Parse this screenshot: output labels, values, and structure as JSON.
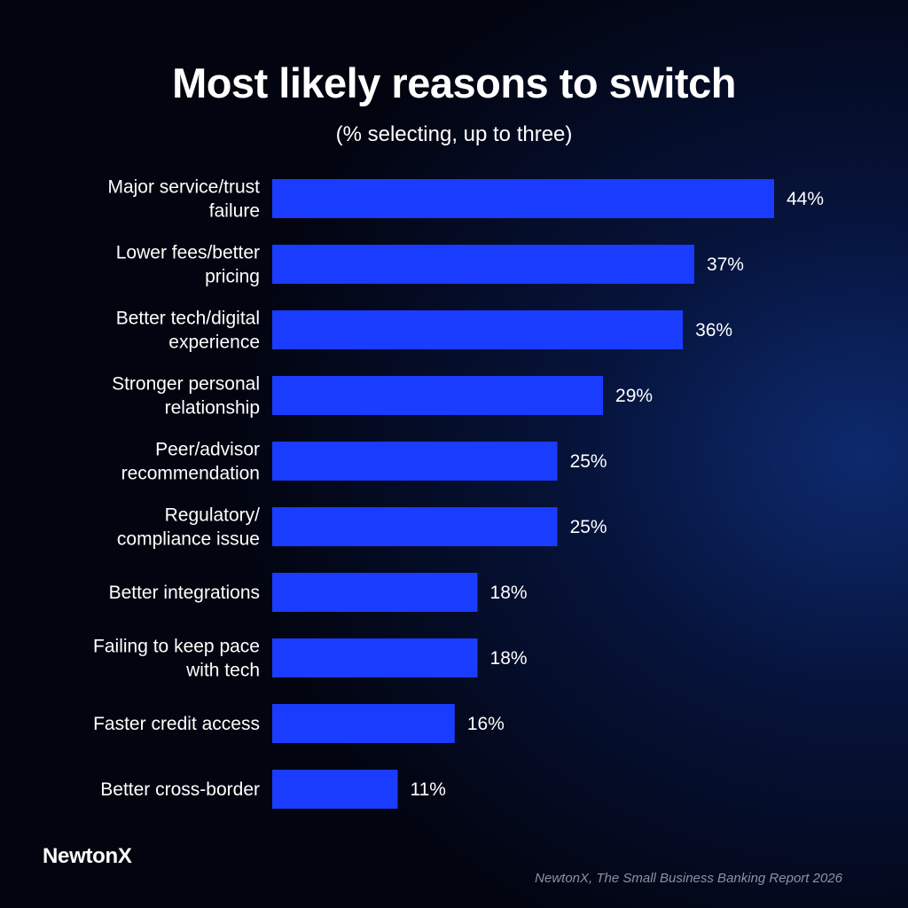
{
  "header": {
    "title": "Most likely reasons to switch",
    "subtitle": "(% selecting, up to three)"
  },
  "footer": {
    "brand": "NewtonX",
    "source": "NewtonX, The Small Business Banking Report 2026"
  },
  "colors": {
    "bar": "#1a3cff",
    "background": "#02040f",
    "text": "#ffffff"
  },
  "chart_data": {
    "type": "bar",
    "orientation": "horizontal",
    "title": "Most likely reasons to switch",
    "subtitle": "(% selecting, up to three)",
    "categories": [
      [
        "Major service/trust",
        "failure"
      ],
      [
        "Lower fees/better",
        "pricing"
      ],
      [
        "Better tech/digital",
        "experience"
      ],
      [
        "Stronger personal",
        "relationship"
      ],
      [
        "Peer/advisor",
        "recommendation"
      ],
      [
        "Regulatory/",
        "compliance issue"
      ],
      [
        "Better integrations"
      ],
      [
        "Failing to keep pace",
        "with tech"
      ],
      [
        "Faster credit access"
      ],
      [
        "Better cross-border"
      ]
    ],
    "values": [
      44,
      37,
      36,
      29,
      25,
      25,
      18,
      18,
      16,
      11
    ],
    "value_labels": [
      "44%",
      "37%",
      "36%",
      "29%",
      "25%",
      "25%",
      "18%",
      "18%",
      "16%",
      "11%"
    ],
    "unit": "%",
    "xlim": [
      0,
      44
    ],
    "grid": false,
    "legend": "none"
  }
}
